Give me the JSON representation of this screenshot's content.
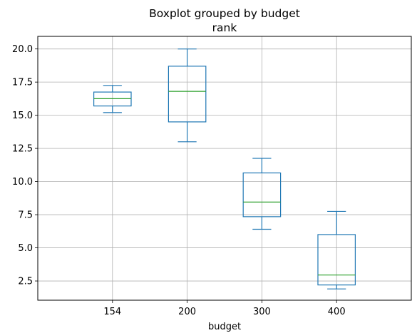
{
  "chart_data": {
    "type": "boxplot",
    "title": "Boxplot grouped by budget",
    "subtitle": "rank",
    "xlabel": "budget",
    "ylabel": "",
    "ylim": [
      1.05,
      20.95
    ],
    "yticks": [
      "2.5",
      "5.0",
      "7.5",
      "10.0",
      "12.5",
      "15.0",
      "17.5",
      "20.0"
    ],
    "grid": true,
    "categories": [
      "154",
      "200",
      "300",
      "400"
    ],
    "boxes": [
      {
        "category": "154",
        "whisker_low": 15.2,
        "q1": 15.7,
        "median": 16.25,
        "q3": 16.75,
        "whisker_high": 17.25
      },
      {
        "category": "200",
        "whisker_low": 13.0,
        "q1": 14.5,
        "median": 16.8,
        "q3": 18.7,
        "whisker_high": 20.0
      },
      {
        "category": "300",
        "whisker_low": 6.4,
        "q1": 7.35,
        "median": 8.45,
        "q3": 10.65,
        "whisker_high": 11.75
      },
      {
        "category": "400",
        "whisker_low": 1.9,
        "q1": 2.2,
        "median": 2.95,
        "q3": 6.0,
        "whisker_high": 7.75
      }
    ],
    "colors": {
      "box": "#1f77b4",
      "median": "#2ca02c",
      "grid": "#b0b0b0",
      "axes": "#000000"
    }
  }
}
